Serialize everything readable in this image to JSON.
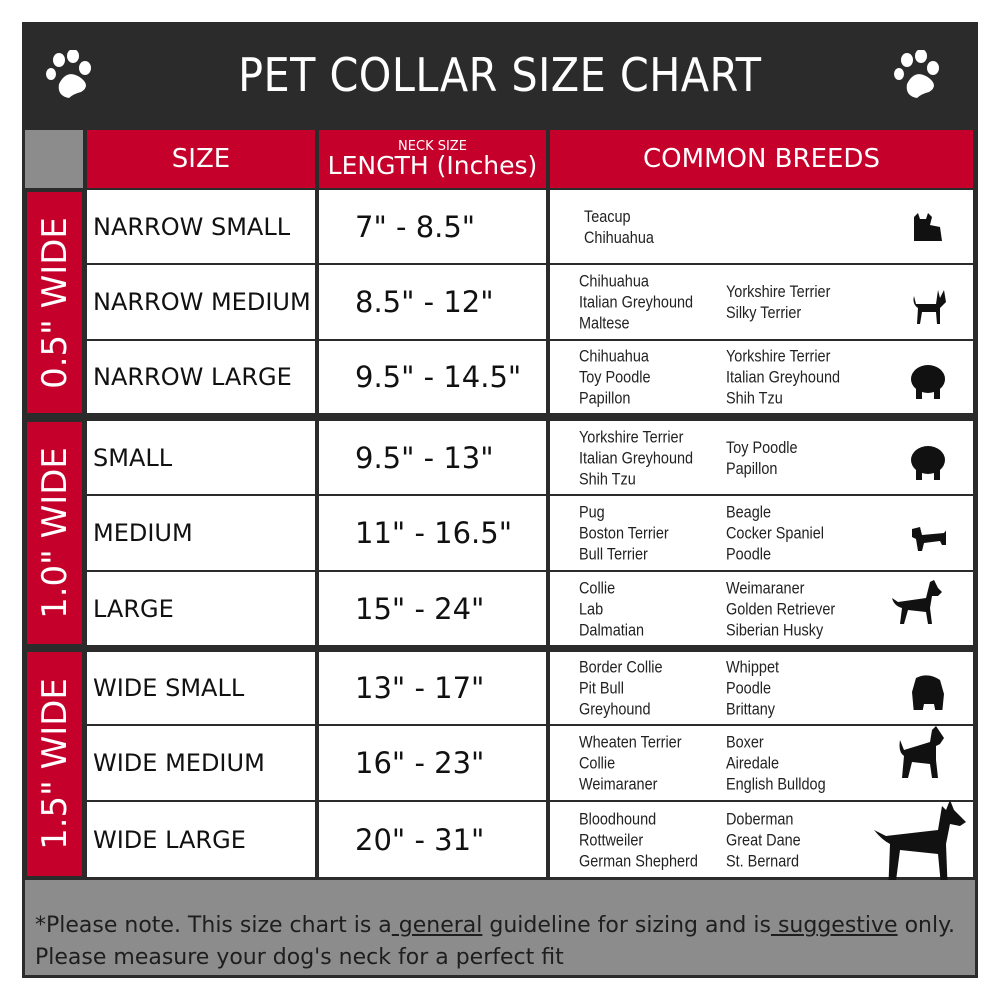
{
  "title": "PET COLLAR SIZE CHART",
  "icons": {
    "left": "paw-icon",
    "right": "paw-icon"
  },
  "colors": {
    "header_bg": "#2b2b2b",
    "accent_red": "#c4002b",
    "footer_gray": "#8c8c8d"
  },
  "columns": {
    "size": "SIZE",
    "length_small": "NECK SIZE",
    "length": "LENGTH (Inches)",
    "breeds": "COMMON BREEDS"
  },
  "groups": [
    "0.5\" WIDE",
    "1.0\" WIDE",
    "1.5\" WIDE"
  ],
  "rows": [
    {
      "size": "NARROW SMALL",
      "length": "7\" - 8.5\"",
      "breeds_a": [
        "Teacup",
        "Chihuahua"
      ],
      "breeds_b": [],
      "dog": "yorkie-silhouette-icon"
    },
    {
      "size": "NARROW MEDIUM",
      "length": "8.5\" - 12\"",
      "breeds_a": [
        "Chihuahua",
        "Italian Greyhound",
        "Maltese"
      ],
      "breeds_b": [
        "Yorkshire Terrier",
        "Silky Terrier"
      ],
      "dog": "chihuahua-silhouette-icon"
    },
    {
      "size": "NARROW LARGE",
      "length": "9.5\" - 14.5\"",
      "breeds_a": [
        "Chihuahua",
        "Toy Poodle",
        "Papillon"
      ],
      "breeds_b": [
        "Yorkshire Terrier",
        "Italian Greyhound",
        "Shih Tzu"
      ],
      "dog": "pomeranian-silhouette-icon"
    },
    {
      "size": "SMALL",
      "length": "9.5\" - 13\"",
      "breeds_a": [
        "Yorkshire Terrier",
        "Italian Greyhound",
        "Shih Tzu"
      ],
      "breeds_b": [
        "Toy Poodle",
        "Papillon"
      ],
      "dog": "pomeranian-silhouette-icon"
    },
    {
      "size": "MEDIUM",
      "length": "11\" - 16.5\"",
      "breeds_a": [
        "Pug",
        "Boston Terrier",
        "Bull Terrier"
      ],
      "breeds_b": [
        "Beagle",
        "Cocker Spaniel",
        "Poodle"
      ],
      "dog": "dachshund-silhouette-icon"
    },
    {
      "size": "LARGE",
      "length": "15\" - 24\"",
      "breeds_a": [
        "Collie",
        "Lab",
        "Dalmatian"
      ],
      "breeds_b": [
        "Weimaraner",
        "Golden Retriever",
        "Siberian Husky"
      ],
      "dog": "shepherd-silhouette-icon"
    },
    {
      "size": "WIDE SMALL",
      "length": "13\" - 17\"",
      "breeds_a": [
        "Border Collie",
        "Pit Bull",
        "Greyhound"
      ],
      "breeds_b": [
        "Whippet",
        "Poodle",
        "Brittany"
      ],
      "dog": "bulldog-silhouette-icon"
    },
    {
      "size": "WIDE MEDIUM",
      "length": "16\" - 23\"",
      "breeds_a": [
        "Wheaten Terrier",
        "Collie",
        "Weimaraner"
      ],
      "breeds_b": [
        "Boxer",
        "Airedale",
        "English Bulldog"
      ],
      "dog": "pitbull-silhouette-icon"
    },
    {
      "size": "WIDE LARGE",
      "length": "20\" - 31\"",
      "breeds_a": [
        "Bloodhound",
        "Rottweiler",
        "German Shepherd"
      ],
      "breeds_b": [
        "Doberman",
        "Great Dane",
        "St. Bernard"
      ],
      "dog": "doberman-silhouette-icon"
    }
  ],
  "footer": {
    "p1": "*Please note. This size chart is a",
    "u1": " general",
    "p2": " guideline for sizing and is",
    "u2": " suggestive",
    "p3": " only.",
    "line2": "Please measure your dog's neck for a perfect fit"
  }
}
